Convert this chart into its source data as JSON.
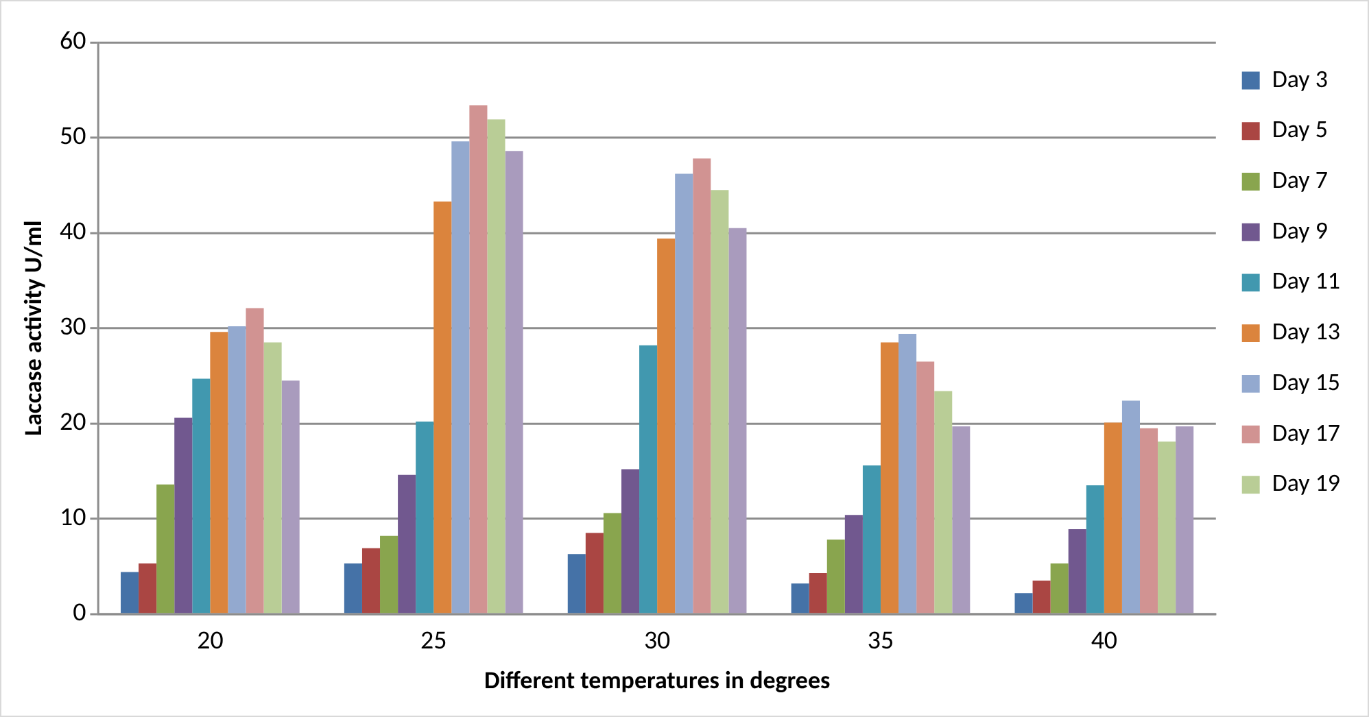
{
  "chart_data": {
    "type": "bar",
    "xlabel": "Different temperatures in degrees",
    "ylabel": "Laccase activity U/ml",
    "categories": [
      "20",
      "25",
      "30",
      "35",
      "40"
    ],
    "ylim": [
      0,
      60
    ],
    "yticks": [
      0,
      10,
      20,
      30,
      40,
      50,
      60
    ],
    "grid": "y",
    "legend": "right",
    "series": [
      {
        "name": "Day 3",
        "color": "#4572a7",
        "values": [
          4.4,
          5.3,
          6.3,
          3.2,
          2.2
        ]
      },
      {
        "name": "Day 5",
        "color": "#aa4643",
        "values": [
          5.3,
          6.9,
          8.5,
          4.3,
          3.5
        ]
      },
      {
        "name": "Day 7",
        "color": "#89a54e",
        "values": [
          13.6,
          8.2,
          10.6,
          7.8,
          5.3
        ]
      },
      {
        "name": "Day 9",
        "color": "#71588f",
        "values": [
          20.6,
          14.6,
          15.2,
          10.4,
          8.9
        ]
      },
      {
        "name": "Day 11",
        "color": "#4198af",
        "values": [
          24.7,
          20.2,
          28.2,
          15.6,
          13.5
        ]
      },
      {
        "name": "Day 13",
        "color": "#db843d",
        "values": [
          29.6,
          43.3,
          39.4,
          28.5,
          20.1
        ]
      },
      {
        "name": "Day 15",
        "color": "#93a9cf",
        "values": [
          30.2,
          49.6,
          46.2,
          29.4,
          22.4
        ]
      },
      {
        "name": "Day 17",
        "color": "#d19392",
        "values": [
          32.1,
          53.4,
          47.8,
          26.5,
          19.5
        ]
      },
      {
        "name": "Day 19",
        "color": "#b9cd96",
        "values": [
          28.5,
          51.9,
          44.5,
          23.4,
          18.1
        ]
      },
      {
        "color": "#a99bbd",
        "values": [
          24.5,
          48.6,
          40.5,
          19.7,
          19.7
        ]
      }
    ]
  }
}
